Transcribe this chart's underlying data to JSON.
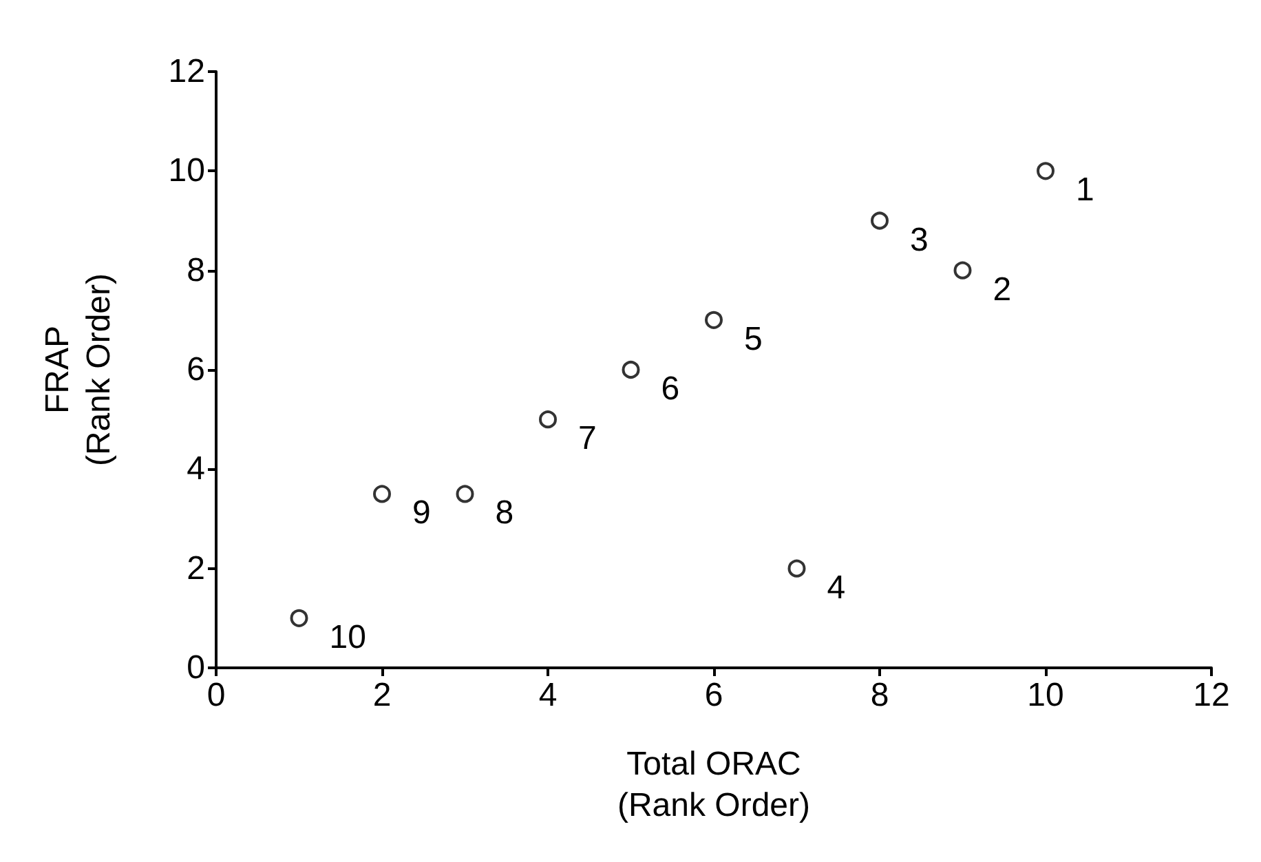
{
  "chart_data": {
    "type": "scatter",
    "xlabel": "Total ORAC\n(Rank Order)",
    "ylabel": "FRAP\n(Rank Order)",
    "x": [
      1,
      2,
      3,
      4,
      5,
      6,
      7,
      8,
      9,
      10
    ],
    "series": [
      {
        "color": "#000000",
        "values": [
          1,
          3.5,
          3.5,
          5,
          6,
          7,
          2,
          9,
          8,
          10
        ]
      }
    ],
    "xlim": [
      0,
      12
    ],
    "xticks": [
      0,
      2,
      4,
      6,
      8,
      10,
      12
    ],
    "ylim": [
      0,
      12
    ],
    "yticks": [
      0,
      2,
      4,
      6,
      8,
      10,
      12
    ],
    "marker": "circle",
    "grid": false,
    "annotations": [
      {
        "text": "10",
        "x": 1,
        "y": 1
      },
      {
        "text": "9",
        "x": 2,
        "y": 3.5
      },
      {
        "text": "8",
        "x": 3,
        "y": 3.5
      },
      {
        "text": "7",
        "x": 4,
        "y": 5
      },
      {
        "text": "6",
        "x": 5,
        "y": 6
      },
      {
        "text": "5",
        "x": 6,
        "y": 7
      },
      {
        "text": "4",
        "x": 7,
        "y": 2
      },
      {
        "text": "3",
        "x": 8,
        "y": 9
      },
      {
        "text": "2",
        "x": 9,
        "y": 8
      },
      {
        "text": "1",
        "x": 10,
        "y": 10
      }
    ]
  }
}
